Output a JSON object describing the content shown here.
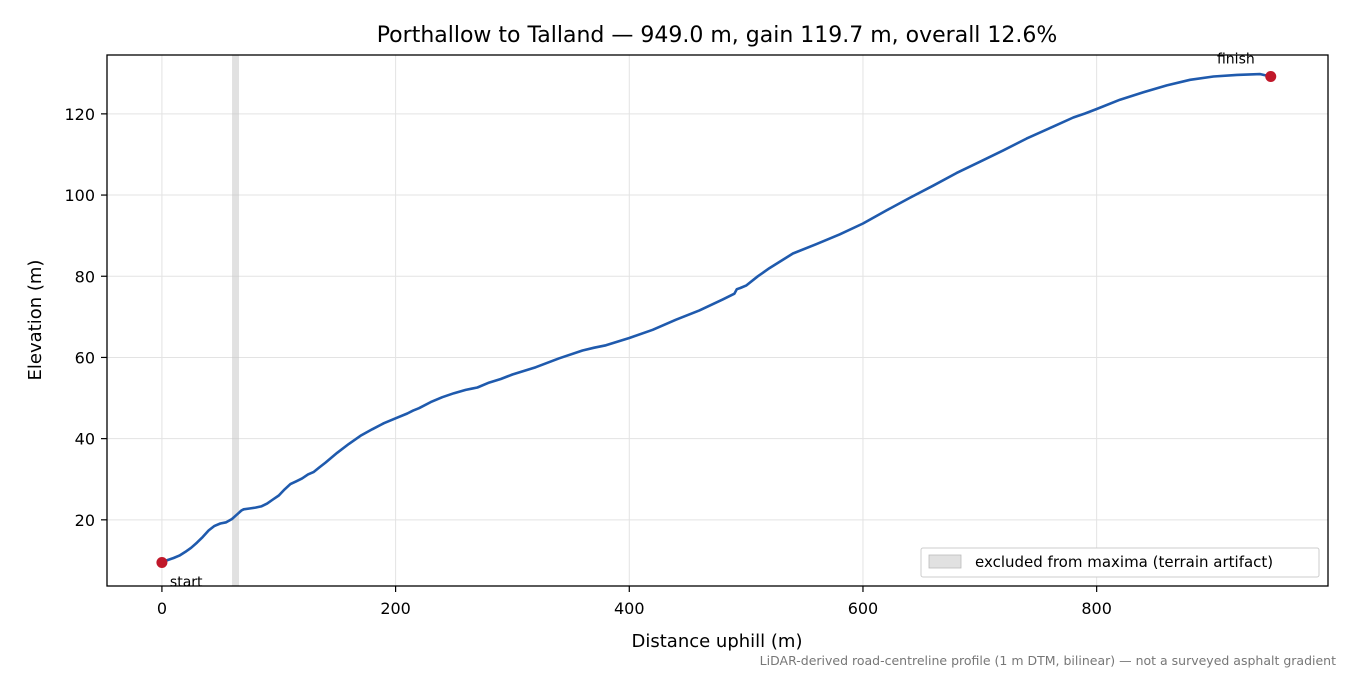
{
  "chart_data": {
    "type": "line",
    "title": "Porthallow to Talland — 949.0 m, gain 119.7 m, overall 12.6%",
    "xlabel": "Distance uphill (m)",
    "ylabel": "Elevation (m)",
    "xlim": [
      -47,
      998
    ],
    "ylim": [
      3.7,
      134.5
    ],
    "xticks": [
      0,
      200,
      400,
      600,
      800
    ],
    "yticks": [
      20,
      40,
      60,
      80,
      100,
      120
    ],
    "grid": true,
    "legend_position": "lower-right",
    "colors": {
      "line": "#1f5aad",
      "marker": "#c0182a",
      "band": "#c8c8c8",
      "grid": "#e3e3e3"
    },
    "series": [
      {
        "x": [
          0,
          5,
          10,
          15,
          20,
          25,
          30,
          35,
          40,
          45,
          50,
          55,
          60,
          63,
          65,
          68,
          70,
          75,
          80,
          85,
          90,
          95,
          100,
          105,
          110,
          115,
          120,
          125,
          130,
          135,
          140,
          150,
          160,
          170,
          180,
          190,
          200,
          210,
          215,
          220,
          230,
          240,
          250,
          260,
          265,
          270,
          280,
          290,
          300,
          320,
          340,
          360,
          370,
          380,
          400,
          420,
          440,
          460,
          480,
          490,
          492,
          495,
          500,
          510,
          520,
          540,
          560,
          580,
          600,
          620,
          640,
          660,
          680,
          700,
          720,
          740,
          760,
          780,
          790,
          800,
          820,
          840,
          860,
          880,
          900,
          920,
          940,
          949
        ],
        "y": [
          9.5,
          10.1,
          10.6,
          11.2,
          12.1,
          13.1,
          14.4,
          15.8,
          17.4,
          18.5,
          19.1,
          19.4,
          20.2,
          21.0,
          21.5,
          22.3,
          22.6,
          22.8,
          23.0,
          23.3,
          24.0,
          25.0,
          26.0,
          27.5,
          28.8,
          29.5,
          30.2,
          31.2,
          31.8,
          33.0,
          34.1,
          36.5,
          38.7,
          40.7,
          42.3,
          43.8,
          45.0,
          46.2,
          46.9,
          47.5,
          49.0,
          50.2,
          51.2,
          52.0,
          52.3,
          52.6,
          53.8,
          54.7,
          55.8,
          57.6,
          59.8,
          61.7,
          62.4,
          63.0,
          64.8,
          66.8,
          69.3,
          71.6,
          74.3,
          75.7,
          76.8,
          77.1,
          77.7,
          80.0,
          82.0,
          85.6,
          87.9,
          90.3,
          93.0,
          96.2,
          99.3,
          102.3,
          105.4,
          108.2,
          111.0,
          113.9,
          116.5,
          119.1,
          120.1,
          121.2,
          123.5,
          125.3,
          127.0,
          128.4,
          129.2,
          129.6,
          129.8,
          129.2
        ]
      }
    ],
    "excluded_band": {
      "x0": 60,
      "x1": 66,
      "legend": "excluded from maxima (terrain artifact)"
    },
    "markers": [
      {
        "x": 0,
        "y": 9.5,
        "label": "start"
      },
      {
        "x": 949,
        "y": 129.2,
        "label": "finish"
      }
    ],
    "footnote": "LiDAR-derived road-centreline profile (1 m DTM, bilinear) — not a surveyed asphalt gradient"
  }
}
